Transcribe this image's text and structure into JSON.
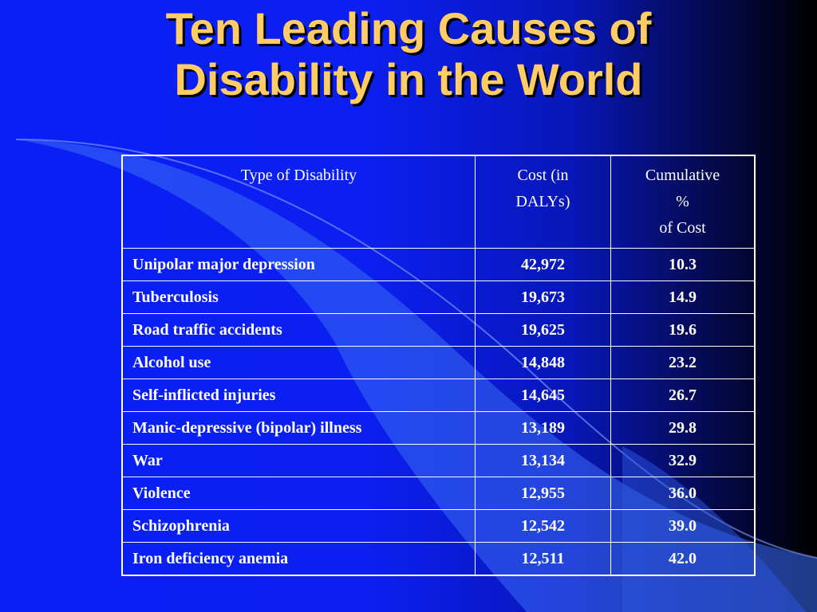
{
  "slide": {
    "title_line1": "Ten Leading Causes of",
    "title_line2": "Disability in the World"
  },
  "table": {
    "headers": {
      "type": "Type of Disability",
      "cost_line1": "Cost (in",
      "cost_line2": "DALYs)",
      "cum_line1": "Cumulative",
      "cum_line2": "%",
      "cum_line3": "of Cost"
    },
    "rows": [
      {
        "type": "Unipolar major depression",
        "cost": "42,972",
        "cumulative": "10.3"
      },
      {
        "type": "Tuberculosis",
        "cost": "19,673",
        "cumulative": "14.9"
      },
      {
        "type": "Road traffic accidents",
        "cost": "19,625",
        "cumulative": "19.6"
      },
      {
        "type": "Alcohol use",
        "cost": "14,848",
        "cumulative": "23.2"
      },
      {
        "type": "Self-inflicted injuries",
        "cost": "14,645",
        "cumulative": "26.7"
      },
      {
        "type": "Manic-depressive (bipolar) illness",
        "cost": "13,189",
        "cumulative": "29.8"
      },
      {
        "type": "War",
        "cost": "13,134",
        "cumulative": "32.9"
      },
      {
        "type": "Violence",
        "cost": "12,955",
        "cumulative": "36.0"
      },
      {
        "type": "Schizophrenia",
        "cost": "12,542",
        "cumulative": "39.0"
      },
      {
        "type": "Iron deficiency anemia",
        "cost": "12,511",
        "cumulative": "42.0"
      }
    ]
  },
  "colors": {
    "background": "#0a1ff5",
    "title": "#ffcc66",
    "table_text": "#ffffff",
    "swoosh": "#3a6cf5"
  }
}
